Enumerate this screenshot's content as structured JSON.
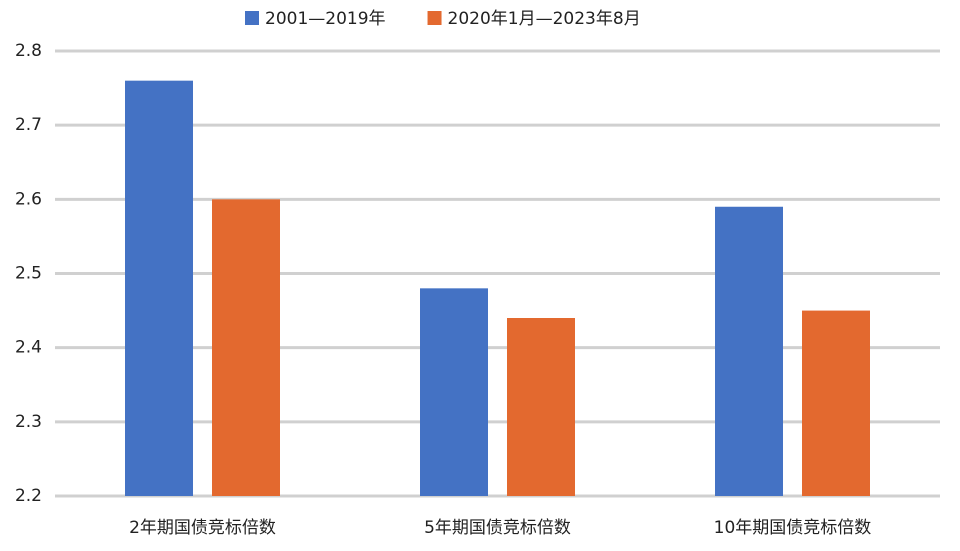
{
  "chart_data": {
    "type": "bar",
    "categories": [
      "2年期国债竞标倍数",
      "5年期国债竞标倍数",
      "10年期国债竞标倍数"
    ],
    "series": [
      {
        "name": "2001—2019年",
        "color": "#4472c4",
        "values": [
          2.76,
          2.48,
          2.59
        ]
      },
      {
        "name": "2020年1月—2023年8月",
        "color": "#e3692f",
        "values": [
          2.6,
          2.44,
          2.45
        ]
      }
    ],
    "ylim": [
      2.2,
      2.8
    ],
    "yticks": [
      2.2,
      2.3,
      2.4,
      2.5,
      2.6,
      2.7,
      2.8
    ],
    "grid": true,
    "legend": "top"
  }
}
